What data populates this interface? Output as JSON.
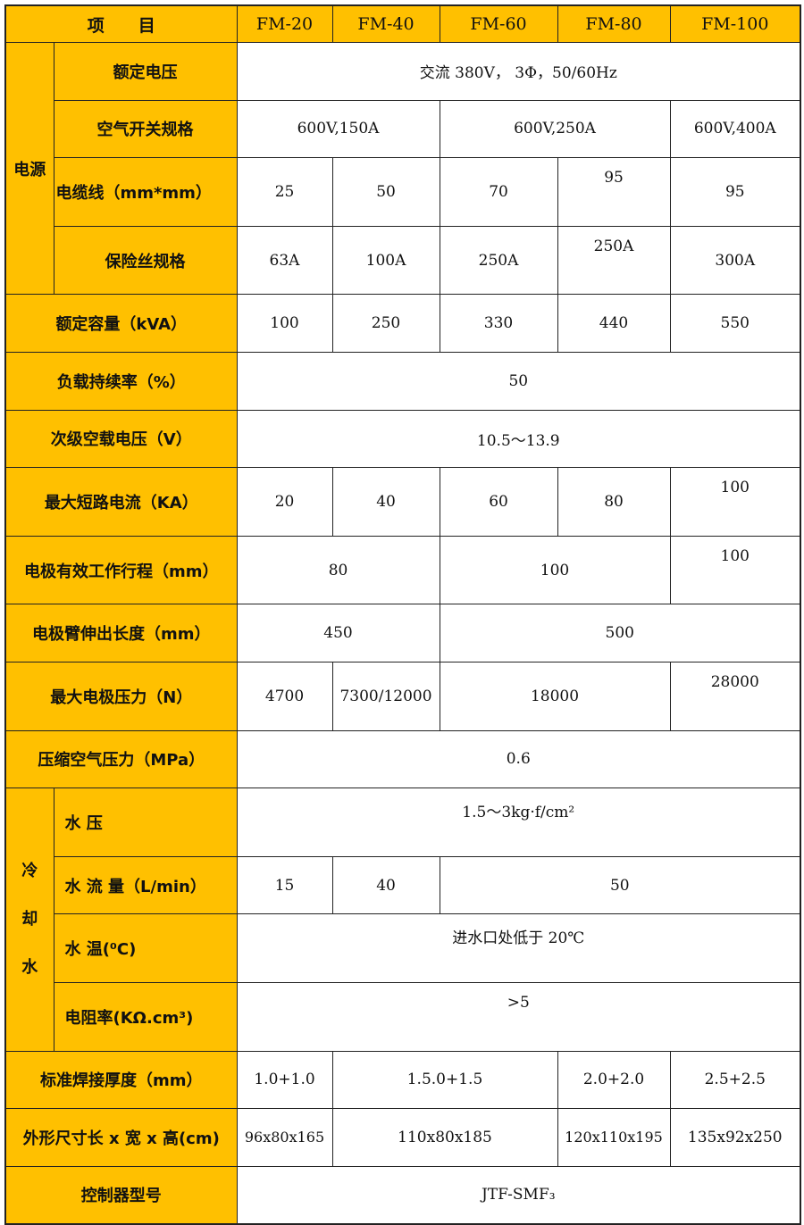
{
  "header": {
    "item": "项　　目",
    "models": [
      "FM-20",
      "FM-40",
      "FM-60",
      "FM-80",
      "FM-100"
    ]
  },
  "colors": {
    "header_bg": "#FFC000",
    "cell_bg": "#FFFFFF",
    "border": "#222222"
  },
  "power": {
    "group": "电源",
    "rated_voltage": {
      "label": "额定电压",
      "value": "交流 380V， 3Φ，50/60Hz"
    },
    "breaker": {
      "label": "空气开关规格",
      "values": [
        "600V,150A",
        "600V,250A",
        "600V,400A"
      ]
    },
    "cable": {
      "label": "电缆线（mm*mm）",
      "values": [
        "25",
        "50",
        "70",
        "95",
        "95"
      ]
    },
    "fuse": {
      "label": "保险丝规格",
      "values": [
        "63A",
        "100A",
        "250A",
        "250A",
        "300A"
      ]
    }
  },
  "rated_capacity": {
    "label": "额定容量（kVA）",
    "values": [
      "100",
      "250",
      "330",
      "440",
      "550"
    ]
  },
  "duty_cycle": {
    "label": "负载持续率（%）",
    "value": "50"
  },
  "secondary_voltage": {
    "label": "次级空载电压（V）",
    "value": "10.5～13.9"
  },
  "max_short_current": {
    "label": "最大短路电流（KA）",
    "values": [
      "20",
      "40",
      "60",
      "80",
      "100"
    ]
  },
  "electrode_stroke": {
    "label": "电极有效工作行程（mm）",
    "values": [
      "80",
      "100",
      "100"
    ]
  },
  "arm_length": {
    "label": "电极臂伸出长度（mm）",
    "values": [
      "450",
      "500"
    ]
  },
  "max_pressure": {
    "label": "最大电极压力（N）",
    "values": [
      "4700",
      "7300/12000",
      "18000",
      "28000"
    ]
  },
  "air_pressure": {
    "label": "压缩空气压力（MPa）",
    "value": "0.6"
  },
  "cooling": {
    "group": [
      "冷",
      "却",
      "水"
    ],
    "water_pressure": {
      "label": "水 压",
      "value": "1.5～3kg·f/cm²"
    },
    "water_flow": {
      "label": "水 流 量（L/min）",
      "values": [
        "15",
        "40",
        "50"
      ]
    },
    "water_temp": {
      "label": "水 温(⁰C)",
      "value": "进水口处低于 20℃"
    },
    "resistivity": {
      "label": "电阻率(KΩ.cm³)",
      "value": ">5"
    }
  },
  "weld_thickness": {
    "label": "标准焊接厚度（mm）",
    "values": [
      "1.0+1.0",
      "1.5.0+1.5",
      "2.0+2.0",
      "2.5+2.5"
    ]
  },
  "dimensions": {
    "label": "外形尺寸长 x 宽 x 高(cm)",
    "values": [
      "96x80x165",
      "110x80x185",
      "120x110x195",
      "135x92x250"
    ]
  },
  "controller": {
    "label": "控制器型号",
    "value": "JTF-SMF₃"
  }
}
